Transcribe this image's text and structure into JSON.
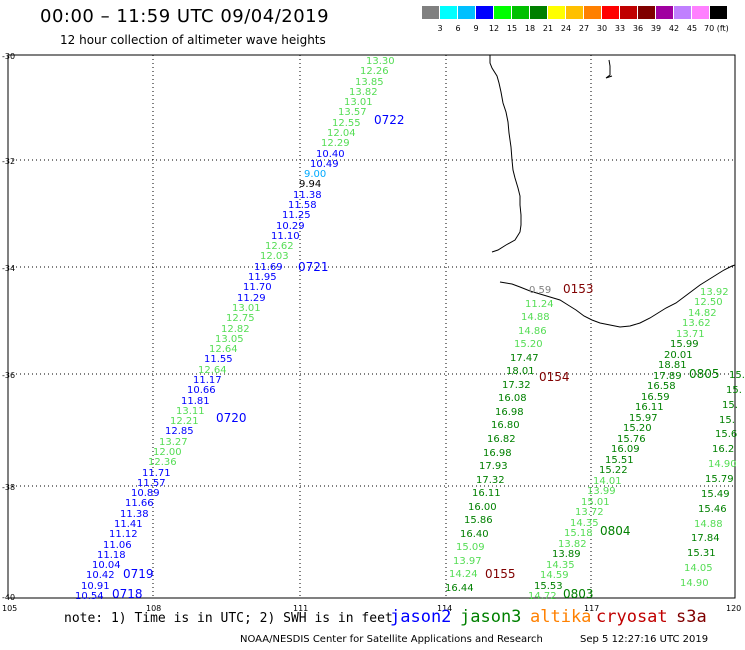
{
  "title": "00:00 – 11:59 UTC 09/04/2019",
  "subtitle": "12 hour collection of altimeter wave heights",
  "scale": {
    "colors": [
      "#808080",
      "#00ffff",
      "#00c0ff",
      "#0000ff",
      "#00ff00",
      "#00c000",
      "#008000",
      "#ffff00",
      "#ffc000",
      "#ff8000",
      "#ff0000",
      "#c00000",
      "#800000",
      "#a000a0",
      "#c080ff",
      "#ff80ff",
      "#000000"
    ],
    "labels": [
      "3",
      "6",
      "9",
      "12",
      "15",
      "18",
      "21",
      "24",
      "27",
      "30",
      "33",
      "36",
      "39",
      "42",
      "45",
      "70 (ft)"
    ],
    "unit": "(ft)"
  },
  "lat_labels": [
    "-30",
    "-32",
    "-34",
    "-36",
    "-38",
    "-40"
  ],
  "lon_labels": [
    "105",
    "108",
    "111",
    "114",
    "117",
    "120"
  ],
  "colors": {
    "jason2": "#0000ff",
    "jason3": "#008000",
    "altika": "#ff8000",
    "cryosat": "#c00000",
    "s3a": "#800000",
    "light_green": "#55dd55",
    "dark_green": "#008000",
    "gray": "#808080"
  },
  "tracks": [
    {
      "values": [
        "13.30",
        "12.26",
        "13.85",
        "13.82",
        "13.01",
        "13.57",
        "12.55",
        "12.04",
        "12.29",
        "10.40",
        "10.49",
        "9.00",
        "9.94",
        "11.38",
        "11.58",
        "11.25",
        "10.29",
        "11.10",
        "12.62",
        "12.03",
        "11.69",
        "11.95",
        "11.70",
        "11.29",
        "13.01",
        "12.75",
        "12.82",
        "13.05",
        "12.64",
        "11.55",
        "12.64",
        "11.17",
        "10.66",
        "11.81",
        "13.11",
        "12.21",
        "12.85",
        "13.27",
        "12.00",
        "12.36",
        "11.71",
        "11.57",
        "10.89",
        "11.66",
        "11.38",
        "11.41",
        "11.12",
        "11.06",
        "11.18",
        "10.04",
        "10.42",
        "10.91",
        "10.54"
      ]
    }
  ],
  "track_labels": [
    "0722",
    "0721",
    "0720",
    "0719",
    "0718",
    "0153",
    "0154",
    "0155",
    "0805",
    "0804",
    "0803"
  ],
  "track_c": {
    "values": [
      "0.59",
      "11.24",
      "14.88",
      "14.86",
      "15.20",
      "17.47",
      "18.01",
      "17.32",
      "16.08",
      "16.98",
      "16.80",
      "16.82",
      "16.98",
      "17.93",
      "17.32",
      "16.11",
      "16.00",
      "15.86",
      "16.40",
      "15.09",
      "13.97",
      "14.24",
      "16.44"
    ]
  },
  "track_d": {
    "values": [
      "13.92",
      "12.50",
      "14.82",
      "13.62",
      "13.71",
      "15.99",
      "20.01",
      "18.81",
      "17.89",
      "16.58",
      "16.59",
      "16.11",
      "15.97",
      "15.20",
      "15.76",
      "16.09",
      "15.51",
      "15.22",
      "14.01",
      "13.99",
      "15.01",
      "13.72",
      "14.35",
      "15.18",
      "13.82",
      "13.89",
      "14.35",
      "14.59",
      "15.53",
      "14.72"
    ]
  },
  "track_e": {
    "values": [
      "15.",
      "15.",
      "15.",
      "15.",
      "15.6",
      "16.2",
      "14.90",
      "15.79",
      "15.49",
      "15.46",
      "14.88",
      "17.84",
      "15.31",
      "14.05",
      "14.90"
    ]
  },
  "note": "note: 1) Time is in UTC; 2) SWH is in feet",
  "legend": [
    "jason2",
    "jason3",
    "altika",
    "cryosat",
    "s3a"
  ],
  "footer": "NOAA/NESDIS Center for Satellite Applications and Research",
  "footer_time": "Sep  5 12:27:16 UTC 2019"
}
